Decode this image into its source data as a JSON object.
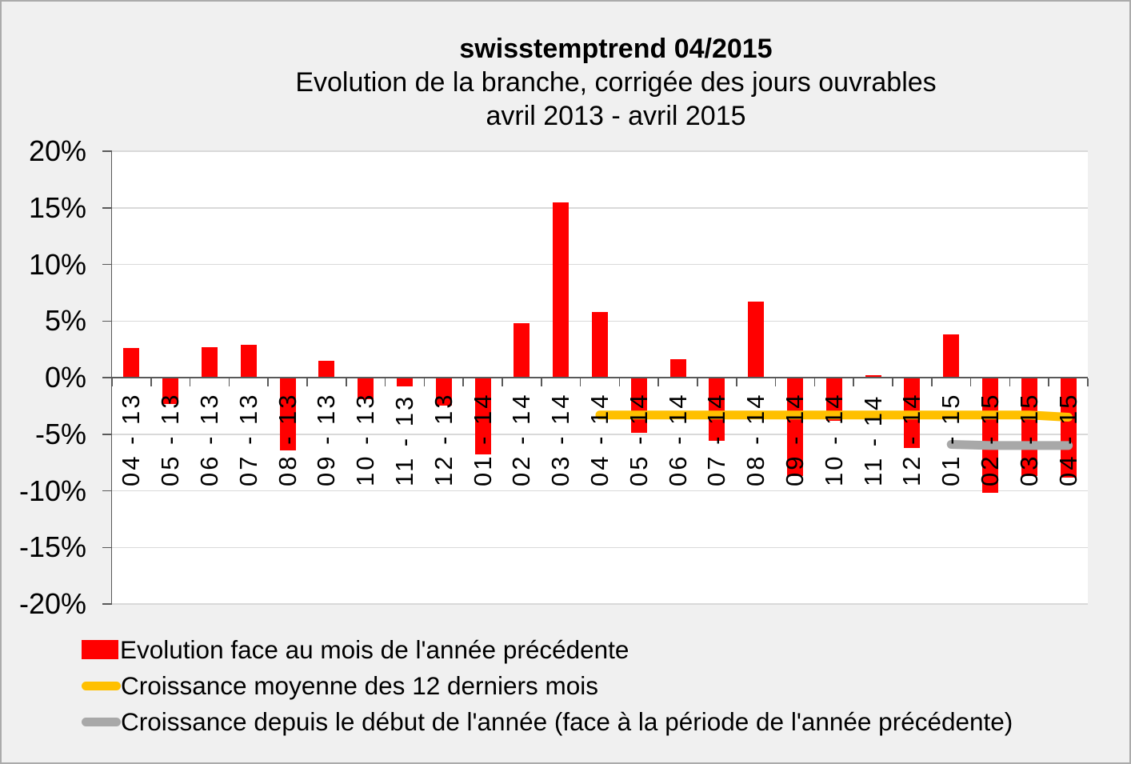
{
  "title": {
    "line1": "swisstemptrend 04/2015",
    "line2": "Evolution de la branche, corrigée des jours ouvrables",
    "line3": "avril 2013 - avril 2015"
  },
  "y_axis": {
    "min": -20,
    "max": 20,
    "step": 5,
    "unit": "%",
    "tick_labels": [
      "20%",
      "15%",
      "10%",
      "5%",
      "0%",
      "-5%",
      "-10%",
      "-15%",
      "-20%"
    ]
  },
  "chart_data": {
    "type": "bar",
    "title": "swisstemptrend 04/2015",
    "subtitle": "Evolution de la branche, corrigée des jours ouvrables, avril 2013 - avril 2015",
    "ylim": [
      -20,
      20
    ],
    "grid": true,
    "legend_position": "bottom-left",
    "categories": [
      "04 - 13",
      "05 - 13",
      "06 - 13",
      "07 - 13",
      "08 - 13",
      "09 - 13",
      "10 - 13",
      "11 - 13",
      "12 - 13",
      "01 - 14",
      "02 - 14",
      "03 - 14",
      "04 - 14",
      "05 - 14",
      "06 - 14",
      "07 - 14",
      "08 - 14",
      "09 - 14",
      "10 - 14",
      "11 - 14",
      "12 - 14",
      "01 - 15",
      "02 - 15",
      "03 - 15",
      "04 - 15"
    ],
    "series": [
      {
        "name": "Evolution face au mois de l'année précédente",
        "type": "bar",
        "color": "#ff0000",
        "values": [
          2.6,
          -2.3,
          2.7,
          2.9,
          -6.4,
          1.5,
          -1.9,
          -0.8,
          -2.5,
          -6.8,
          4.8,
          15.5,
          5.8,
          -4.9,
          1.6,
          -5.6,
          6.7,
          -8.7,
          -3.8,
          0.2,
          -6.2,
          3.8,
          -10.2,
          -8.7,
          -8.8
        ]
      },
      {
        "name": "Croissance moyenne des 12 derniers mois",
        "type": "line",
        "color": "#ffc000",
        "start_category": "04 - 14",
        "values": [
          -3.3,
          -3.3,
          -3.3,
          -3.3,
          -3.3,
          -3.3,
          -3.3,
          -3.3,
          -3.3,
          -3.3,
          -3.3,
          -3.3,
          -3.5
        ]
      },
      {
        "name": "Croissance depuis le début de l'année (face à la période de l'année précédente)",
        "type": "line",
        "color": "#a8a8a8",
        "start_category": "01 - 15",
        "values": [
          -5.9,
          -6.0,
          -6.0,
          -6.0
        ]
      }
    ]
  },
  "style_colors": {
    "bar_red": "#ff0000",
    "line_yellow": "#ffc000",
    "line_gray": "#a8a8a8",
    "gridline": "#d9d9d9",
    "axis": "#595959",
    "plot_background": "#ffffff",
    "chart_background": "#f0f0f0"
  }
}
